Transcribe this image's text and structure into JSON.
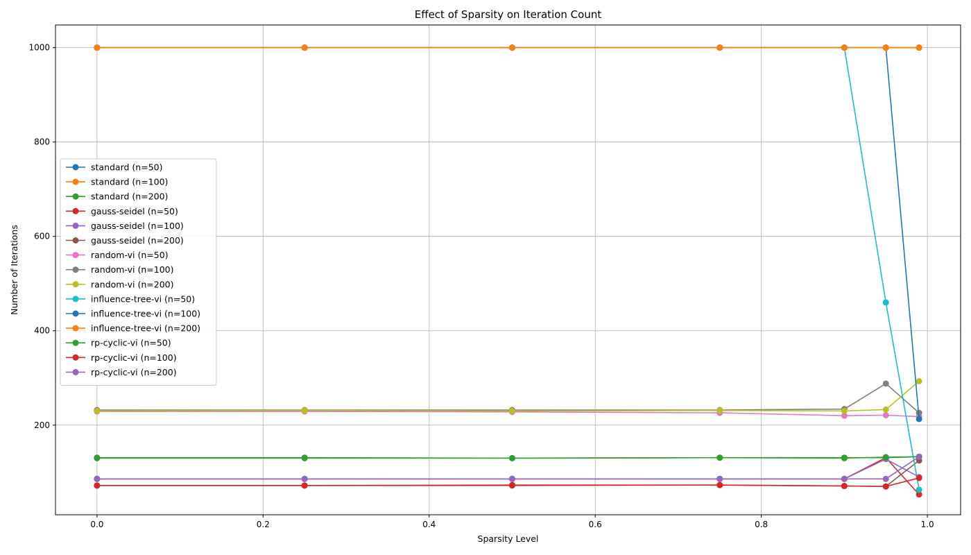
{
  "chart_data": {
    "type": "line",
    "title": "Effect of Sparsity on Iteration Count",
    "xlabel": "Sparsity Level",
    "ylabel": "Number of Iterations",
    "xlim": [
      -0.05,
      1.04
    ],
    "ylim": [
      10,
      1048
    ],
    "xticks": [
      0.0,
      0.2,
      0.4,
      0.6,
      0.8,
      1.0
    ],
    "xtick_labels": [
      "0.0",
      "0.2",
      "0.4",
      "0.6",
      "0.8",
      "1.0"
    ],
    "yticks": [
      200,
      400,
      600,
      800,
      1000
    ],
    "ytick_labels": [
      "200",
      "400",
      "600",
      "800",
      "1000"
    ],
    "grid": true,
    "legend_position": "center-left",
    "x": [
      0.0,
      0.25,
      0.5,
      0.75,
      0.9,
      0.95,
      0.99
    ],
    "series": [
      {
        "name": "standard (n=50)",
        "color": "#1f77b4",
        "values": [
          1000,
          1000,
          1000,
          1000,
          1000,
          1000,
          1000
        ]
      },
      {
        "name": "standard (n=100)",
        "color": "#ff7f0e",
        "values": [
          1000,
          1000,
          1000,
          1000,
          1000,
          1000,
          1000
        ]
      },
      {
        "name": "standard (n=200)",
        "color": "#2ca02c",
        "values": [
          131,
          131,
          130,
          131,
          131,
          131,
          133
        ]
      },
      {
        "name": "gauss-seidel (n=50)",
        "color": "#d62728",
        "values": [
          86,
          86,
          86,
          86,
          86,
          131,
          53
        ]
      },
      {
        "name": "gauss-seidel (n=100)",
        "color": "#9467bd",
        "values": [
          86,
          86,
          86,
          86,
          86,
          128,
          90
        ]
      },
      {
        "name": "gauss-seidel (n=200)",
        "color": "#8c564b",
        "values": [
          72,
          72,
          72,
          73,
          71,
          70,
          125
        ]
      },
      {
        "name": "random-vi (n=50)",
        "color": "#e377c2",
        "values": [
          229,
          229,
          228,
          226,
          220,
          221,
          218
        ]
      },
      {
        "name": "random-vi (n=100)",
        "color": "#7f7f7f",
        "values": [
          232,
          232,
          232,
          232,
          234,
          288,
          226
        ]
      },
      {
        "name": "random-vi (n=200)",
        "color": "#bcbd22",
        "values": [
          230,
          231,
          230,
          231,
          230,
          233,
          293
        ]
      },
      {
        "name": "influence-tree-vi (n=50)",
        "color": "#17becf",
        "values": [
          1000,
          1000,
          1000,
          1000,
          1000,
          460,
          63
        ]
      },
      {
        "name": "influence-tree-vi (n=100)",
        "color": "#1f77b4",
        "values": [
          1000,
          1000,
          1000,
          1000,
          1000,
          1000,
          213
        ]
      },
      {
        "name": "influence-tree-vi (n=200)",
        "color": "#ff7f0e",
        "values": [
          1000,
          1000,
          1000,
          1000,
          1000,
          1000,
          1000
        ]
      },
      {
        "name": "rp-cyclic-vi (n=50)",
        "color": "#2ca02c",
        "values": [
          130,
          130,
          130,
          131,
          130,
          132,
          133
        ]
      },
      {
        "name": "rp-cyclic-vi (n=100)",
        "color": "#d62728",
        "values": [
          72,
          72,
          73,
          73,
          71,
          70,
          88
        ]
      },
      {
        "name": "rp-cyclic-vi (n=200)",
        "color": "#9467bd",
        "values": [
          86,
          86,
          86,
          86,
          86,
          86,
          133
        ]
      }
    ]
  }
}
